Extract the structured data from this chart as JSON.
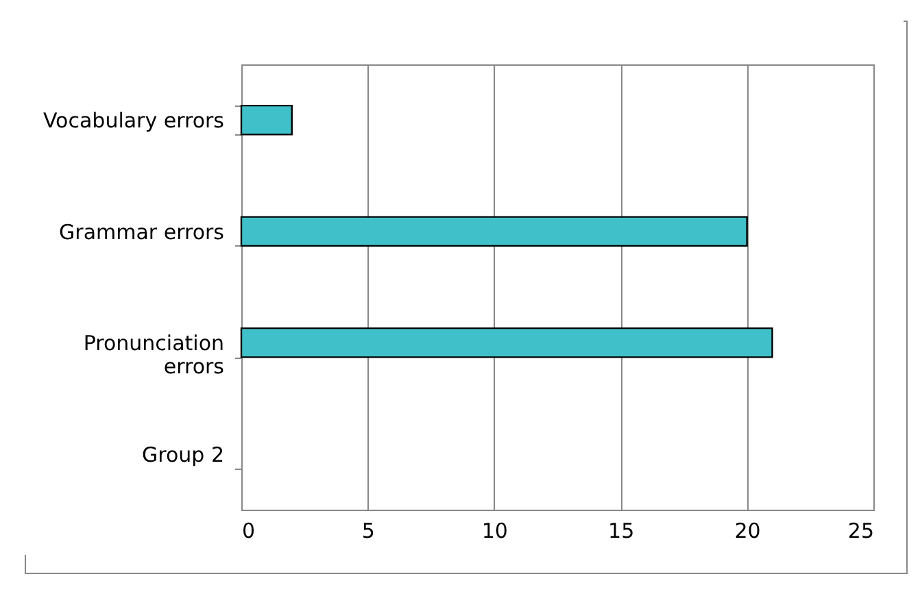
{
  "chart_data": {
    "type": "bar",
    "orientation": "horizontal",
    "categories": [
      "Vocabulary errors",
      "Grammar errors",
      "Pronunciation errors",
      "Group 2"
    ],
    "values": [
      2,
      20,
      21,
      null
    ],
    "color": "#40c0c8",
    "xlim": [
      0,
      25
    ],
    "xticks": [
      0,
      5,
      10,
      15,
      20,
      25
    ],
    "grid": "x"
  }
}
